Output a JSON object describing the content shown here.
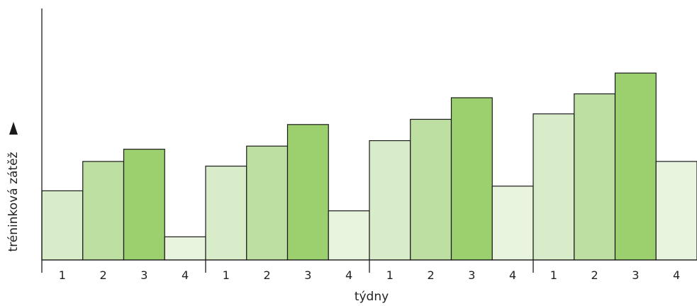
{
  "chart_data": {
    "type": "bar",
    "xlabel": "týdny",
    "ylabel": "tréninková zátěž",
    "ylim": [
      0,
      100
    ],
    "grid": false,
    "categories": [
      "1",
      "2",
      "3",
      "4",
      "1",
      "2",
      "3",
      "4",
      "1",
      "2",
      "3",
      "4",
      "1",
      "2",
      "3",
      "4"
    ],
    "values": [
      26.6,
      37.9,
      42.6,
      8.9,
      36.1,
      43.8,
      52.1,
      18.9,
      45.9,
      54.1,
      62.4,
      28.4,
      56.2,
      63.9,
      71.9,
      37.9
    ],
    "week_in_cycle": [
      1,
      2,
      3,
      4,
      1,
      2,
      3,
      4,
      1,
      2,
      3,
      4,
      1,
      2,
      3,
      4
    ],
    "colors": {
      "week_1": "#d9ecc9",
      "week_2": "#bedfa2",
      "week_3": "#9ccf6e",
      "week_4": "#e9f4de",
      "outline": "#1a1a1a",
      "axis": "#1a1a1a"
    }
  }
}
